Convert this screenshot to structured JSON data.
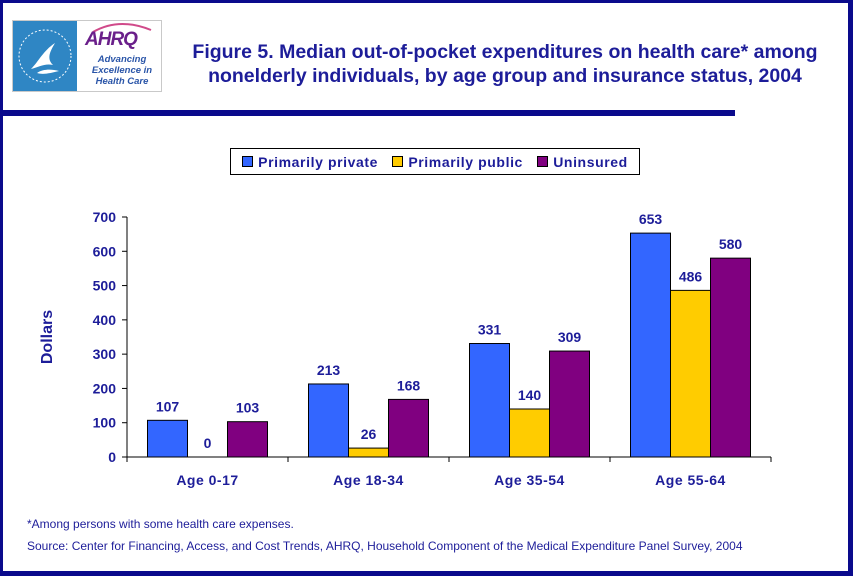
{
  "header": {
    "logo_hhs": "HHS eagle seal",
    "logo_ahrq": "AHRQ",
    "logo_tagline": "Advancing Excellence in Health Care",
    "title": "Figure 5. Median out-of-pocket expenditures on health care* among nonelderly individuals, by age group and insurance status, 2004"
  },
  "colors": {
    "frame": "#0a0a8c",
    "text": "#1d1d99",
    "private": "#3366ff",
    "public": "#ffcc00",
    "uninsured": "#800080"
  },
  "chart_data": {
    "type": "bar",
    "title": "Figure 5. Median out-of-pocket expenditures on health care* among nonelderly individuals, by age group and insurance status, 2004",
    "xlabel": "",
    "ylabel": "Dollars",
    "ylim": [
      0,
      700
    ],
    "yticks": [
      0,
      100,
      200,
      300,
      400,
      500,
      600,
      700
    ],
    "grid": false,
    "legend_position": "top-center",
    "categories": [
      "Age 0-17",
      "Age 18-34",
      "Age 35-54",
      "Age 55-64"
    ],
    "series": [
      {
        "name": "Primarily private",
        "color": "#3366ff",
        "values": [
          107,
          213,
          331,
          653
        ]
      },
      {
        "name": "Primarily public",
        "color": "#ffcc00",
        "values": [
          0,
          26,
          140,
          486
        ]
      },
      {
        "name": "Uninsured",
        "color": "#800080",
        "values": [
          103,
          168,
          309,
          580
        ]
      }
    ]
  },
  "footnotes": {
    "note": "*Among persons with some health care expenses.",
    "source": "Source: Center for Financing, Access, and Cost Trends, AHRQ, Household Component of the Medical Expenditure Panel Survey, 2004"
  }
}
